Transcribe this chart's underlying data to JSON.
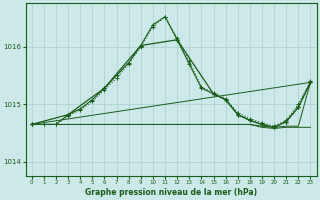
{
  "title": "Graphe pression niveau de la mer (hPa)",
  "bg_color": "#cce8e8",
  "grid_color": "#aacece",
  "line_color": "#1a5c1a",
  "xlim": [
    -0.5,
    23.5
  ],
  "ylim": [
    1013.75,
    1016.75
  ],
  "yticks": [
    1014,
    1015,
    1016
  ],
  "xticks": [
    0,
    1,
    2,
    3,
    4,
    5,
    6,
    7,
    8,
    9,
    10,
    11,
    12,
    13,
    14,
    15,
    16,
    17,
    18,
    19,
    20,
    21,
    22,
    23
  ],
  "s_dotted": {
    "x": [
      0,
      1,
      2,
      3,
      4,
      5,
      6,
      7,
      8,
      9,
      10,
      11,
      12,
      13,
      14,
      15,
      16,
      17,
      18,
      19,
      20,
      21,
      22,
      23
    ],
    "y": [
      1014.65,
      1014.65,
      1014.65,
      1014.8,
      1014.9,
      1015.05,
      1015.25,
      1015.45,
      1015.7,
      1016.0,
      1016.35,
      1016.52,
      1016.15,
      1015.75,
      1015.3,
      1015.2,
      1015.1,
      1014.85,
      1014.75,
      1014.68,
      1014.62,
      1014.72,
      1015.0,
      1015.4
    ]
  },
  "s_solid_all": {
    "x": [
      0,
      1,
      2,
      3,
      4,
      5,
      6,
      7,
      8,
      9,
      10,
      11,
      12,
      13,
      14,
      15,
      16,
      17,
      18,
      19,
      20,
      21,
      22,
      23
    ],
    "y": [
      1014.65,
      1014.65,
      1014.65,
      1014.82,
      1014.92,
      1015.08,
      1015.28,
      1015.5,
      1015.72,
      1016.02,
      1016.38,
      1016.52,
      1016.12,
      1015.7,
      1015.28,
      1015.18,
      1015.08,
      1014.82,
      1014.72,
      1014.65,
      1014.6,
      1014.7,
      1014.95,
      1015.38
    ]
  },
  "s_sparse": {
    "x": [
      0,
      3,
      6,
      9,
      12,
      15,
      16,
      17,
      18,
      19,
      20,
      21,
      22,
      23
    ],
    "y": [
      1014.65,
      1014.82,
      1015.28,
      1016.02,
      1016.12,
      1015.18,
      1015.08,
      1014.82,
      1014.72,
      1014.65,
      1014.6,
      1014.7,
      1014.95,
      1015.38
    ]
  },
  "s_diag1": {
    "x": [
      0,
      23
    ],
    "y": [
      1014.65,
      1015.38
    ]
  },
  "s_diag2": {
    "x": [
      0,
      9,
      12,
      15,
      18,
      19,
      20,
      21,
      22,
      23
    ],
    "y": [
      1014.65,
      1014.65,
      1014.65,
      1014.65,
      1014.65,
      1014.62,
      1014.6,
      1014.62,
      1014.62,
      1015.38
    ]
  },
  "s_flat": {
    "x": [
      0,
      9,
      12,
      15,
      18,
      19,
      20,
      21,
      22,
      23
    ],
    "y": [
      1014.65,
      1014.65,
      1014.65,
      1014.65,
      1014.65,
      1014.6,
      1014.58,
      1014.6,
      1014.6,
      1014.6
    ]
  }
}
